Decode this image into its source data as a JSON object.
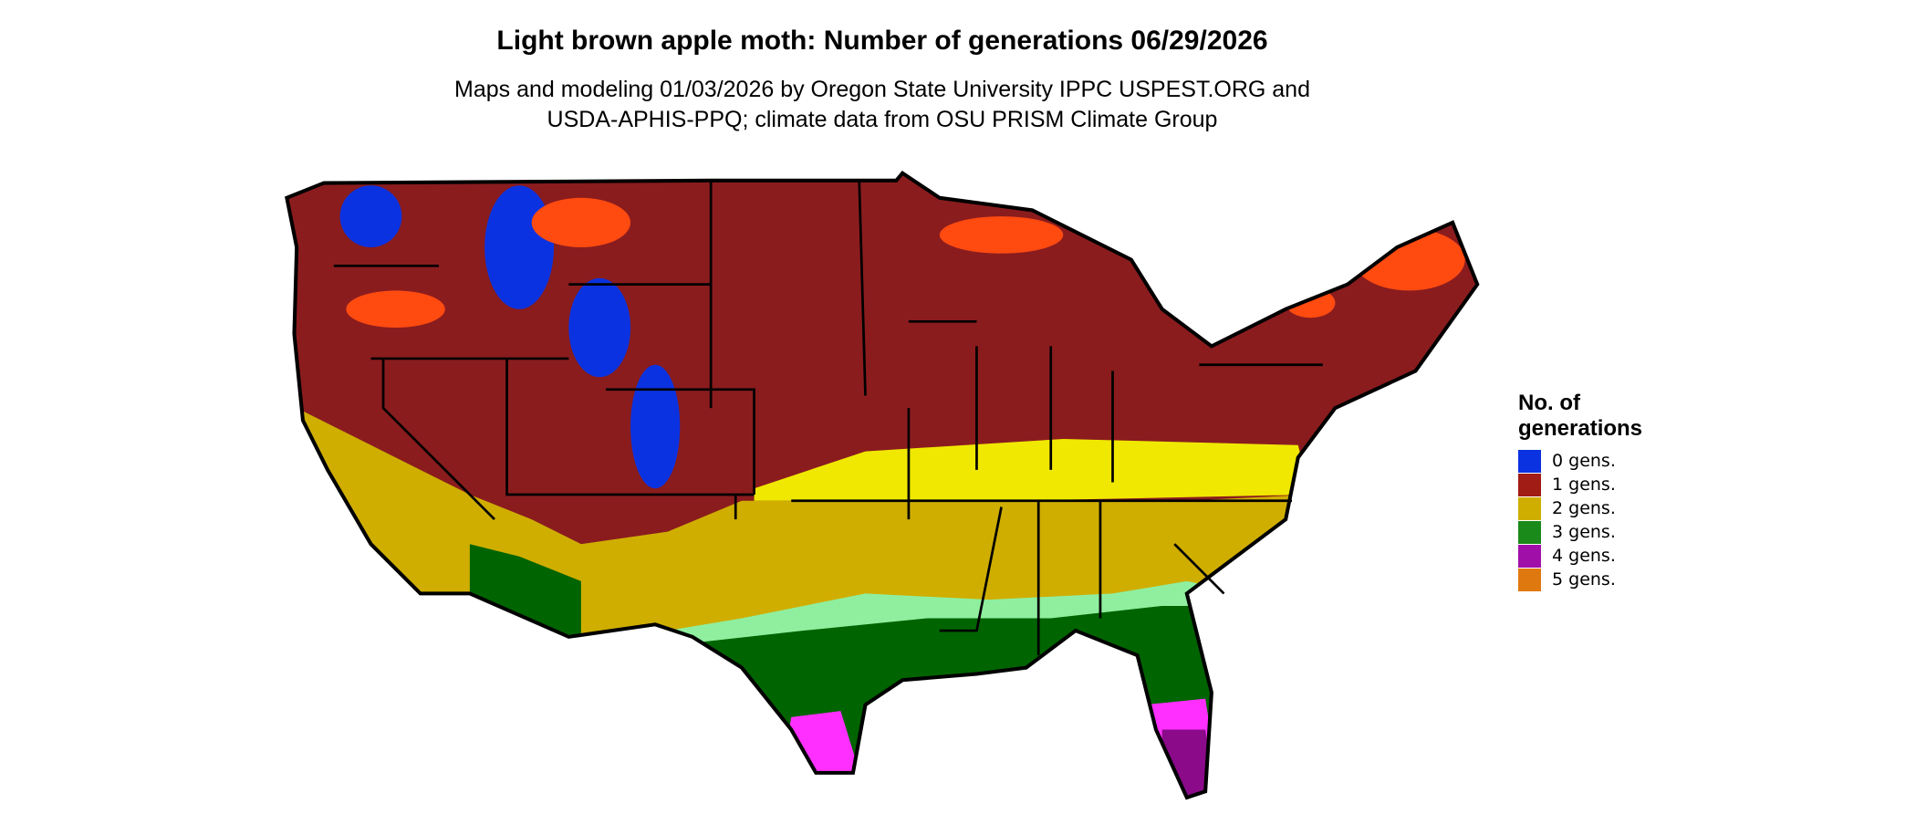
{
  "title": "Light brown apple moth: Number of generations 06/29/2026",
  "subtitle": [
    "Maps and modeling 01/03/2026 by Oregon State University IPPC USPEST.ORG and",
    "USDA-APHIS-PPQ; climate data from OSU PRISM Climate Group"
  ],
  "legend": {
    "title": "No. of generations",
    "items": [
      {
        "label": "0 gens.",
        "color": "#0a32e0"
      },
      {
        "label": "1 gens.",
        "color": "#a01c14"
      },
      {
        "label": "2 gens.",
        "color": "#cfae00"
      },
      {
        "label": "3 gens.",
        "color": "#1a8a1a"
      },
      {
        "label": "4 gens.",
        "color": "#a010a8"
      },
      {
        "label": "5 gens.",
        "color": "#e07810"
      }
    ]
  }
}
